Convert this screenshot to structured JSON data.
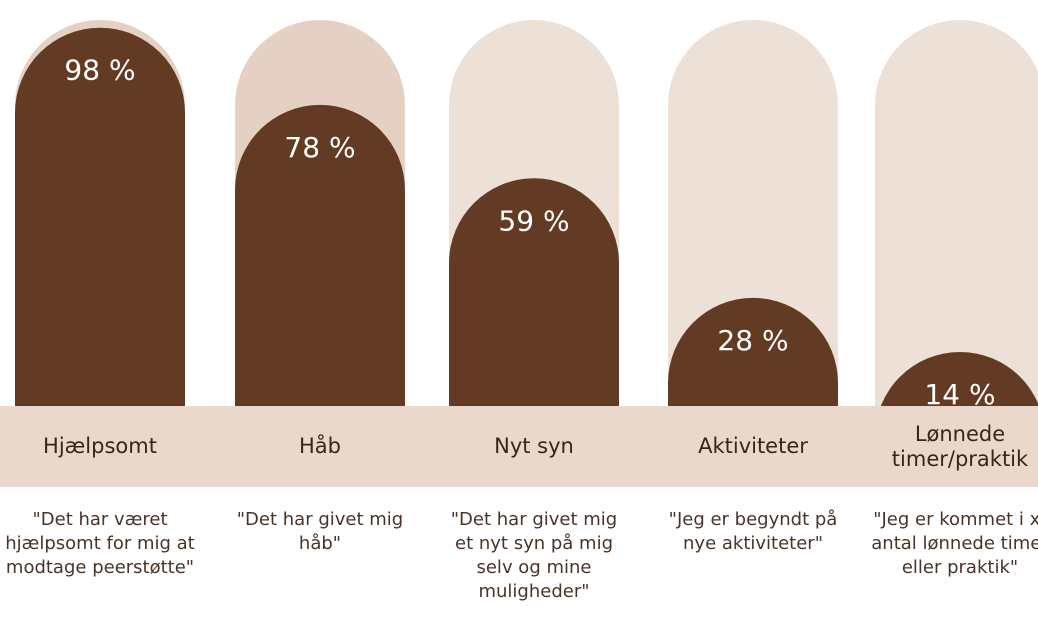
{
  "chart_data": {
    "type": "bar",
    "categories": [
      "Hjælpsomt",
      "Håb",
      "Nyt syn",
      "Aktiviteter",
      "Lønnede timer/praktik"
    ],
    "values": [
      98,
      78,
      59,
      28,
      14
    ],
    "value_labels": [
      "98 %",
      "78 %",
      "59 %",
      "28 %",
      "14 %"
    ],
    "ylim": [
      0,
      100
    ],
    "quotes": [
      "\"Det har været hjælpsomt for mig at modtage peerstøtte\"",
      "\"Det har givet mig håb\"",
      "\"Det har givet mig et nyt syn på mig selv og mine muligheder\"",
      "\"Jeg er begyndt på nye aktiviteter\"",
      "\"Jeg er kommet i x-antal lønnede timer eller praktik\""
    ]
  },
  "colors": {
    "bar_fill": "#633b25",
    "track_fill": "#ede0d6",
    "track_fill_top": "#e5d1c3",
    "value_label": "#ffffff",
    "band": "#ead8cc"
  }
}
